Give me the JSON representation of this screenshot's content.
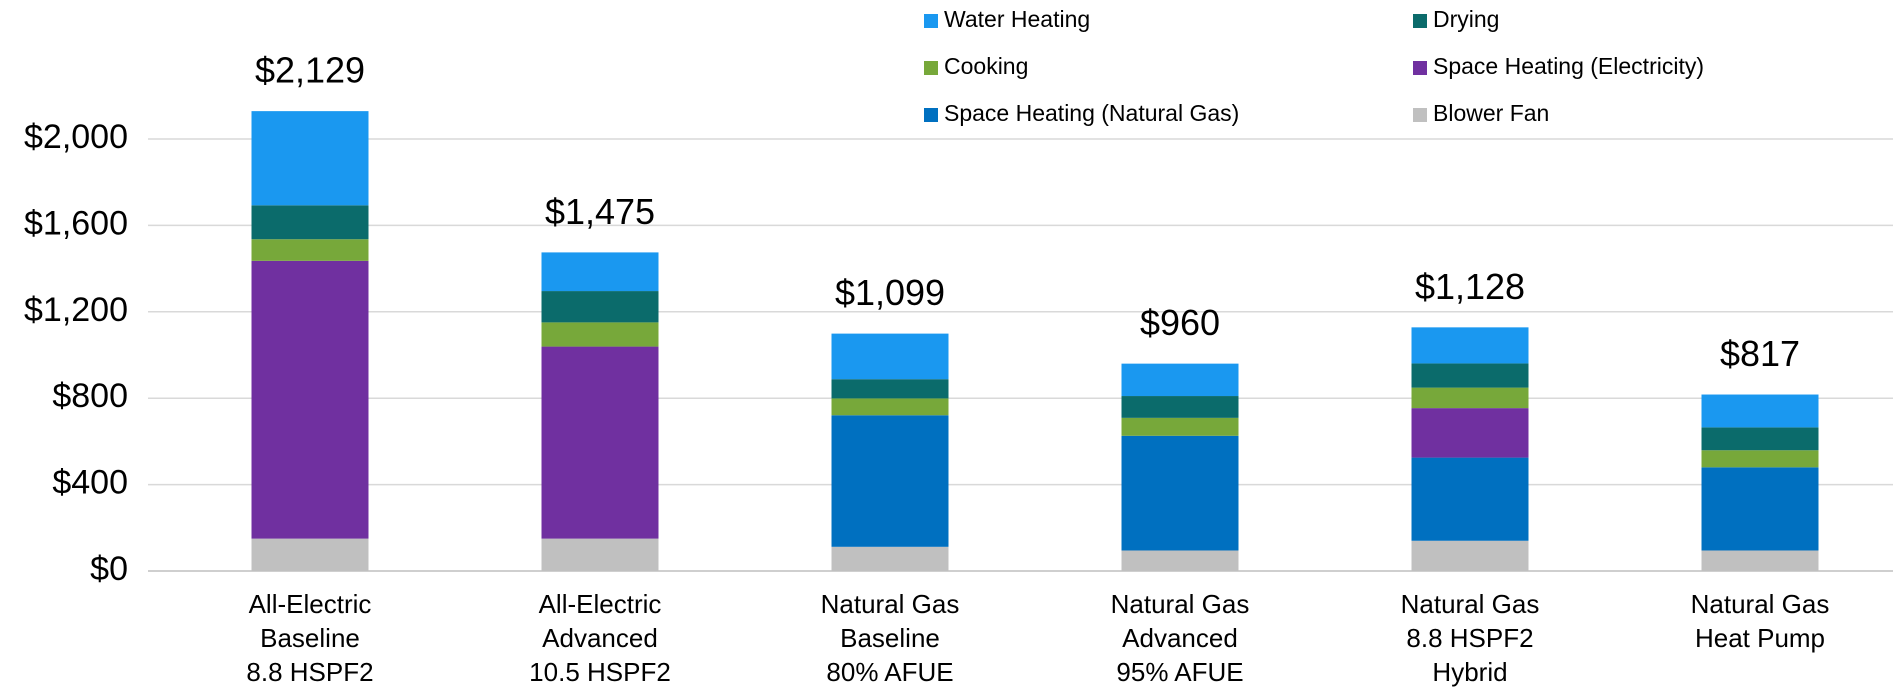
{
  "chart_data": {
    "type": "stacked_bar",
    "categories": [
      [
        "All-Electric",
        "Baseline",
        "8.8 HSPF2"
      ],
      [
        "All-Electric",
        "Advanced",
        "10.5 HSPF2"
      ],
      [
        "Natural Gas",
        "Baseline",
        "80% AFUE"
      ],
      [
        "Natural Gas",
        "Advanced",
        "95% AFUE"
      ],
      [
        "Natural Gas",
        "8.8 HSPF2",
        "Hybrid"
      ],
      [
        "Natural Gas",
        "Heat Pump"
      ]
    ],
    "series": [
      {
        "name": "Water Heating",
        "color": "#1a98f0",
        "values": [
          436,
          179,
          211,
          150,
          167,
          152
        ]
      },
      {
        "name": "Drying",
        "color": "#0b6b6b",
        "values": [
          157,
          145,
          89,
          101,
          112,
          106
        ]
      },
      {
        "name": "Cooking",
        "color": "#77a83a",
        "values": [
          100,
          112,
          78,
          83,
          95,
          79
        ]
      },
      {
        "name": "Space Heating (Electricity)",
        "color": "#7030a0",
        "values": [
          1286,
          889,
          0,
          0,
          229,
          0
        ]
      },
      {
        "name": "Space Heating (Natural Gas)",
        "color": "#0070c0",
        "values": [
          0,
          0,
          609,
          531,
          385,
          385
        ]
      },
      {
        "name": "Blower Fan",
        "color": "#c0c0c0",
        "values": [
          150,
          150,
          112,
          95,
          140,
          95
        ]
      }
    ],
    "totals": [
      2129,
      1475,
      1099,
      960,
      1128,
      817
    ],
    "total_labels": [
      "$2,129",
      "$1,475",
      "$1,099",
      "$960",
      "$1,128",
      "$817"
    ],
    "ylim": [
      0,
      2400
    ],
    "yticks": [
      {
        "value": 0,
        "label": "$0"
      },
      {
        "value": 400,
        "label": "$400"
      },
      {
        "value": 800,
        "label": "$800"
      },
      {
        "value": 1200,
        "label": "$1,200"
      },
      {
        "value": 1600,
        "label": "$1,600"
      },
      {
        "value": 2000,
        "label": "$2,000"
      }
    ],
    "grid": true,
    "legend": "top"
  }
}
